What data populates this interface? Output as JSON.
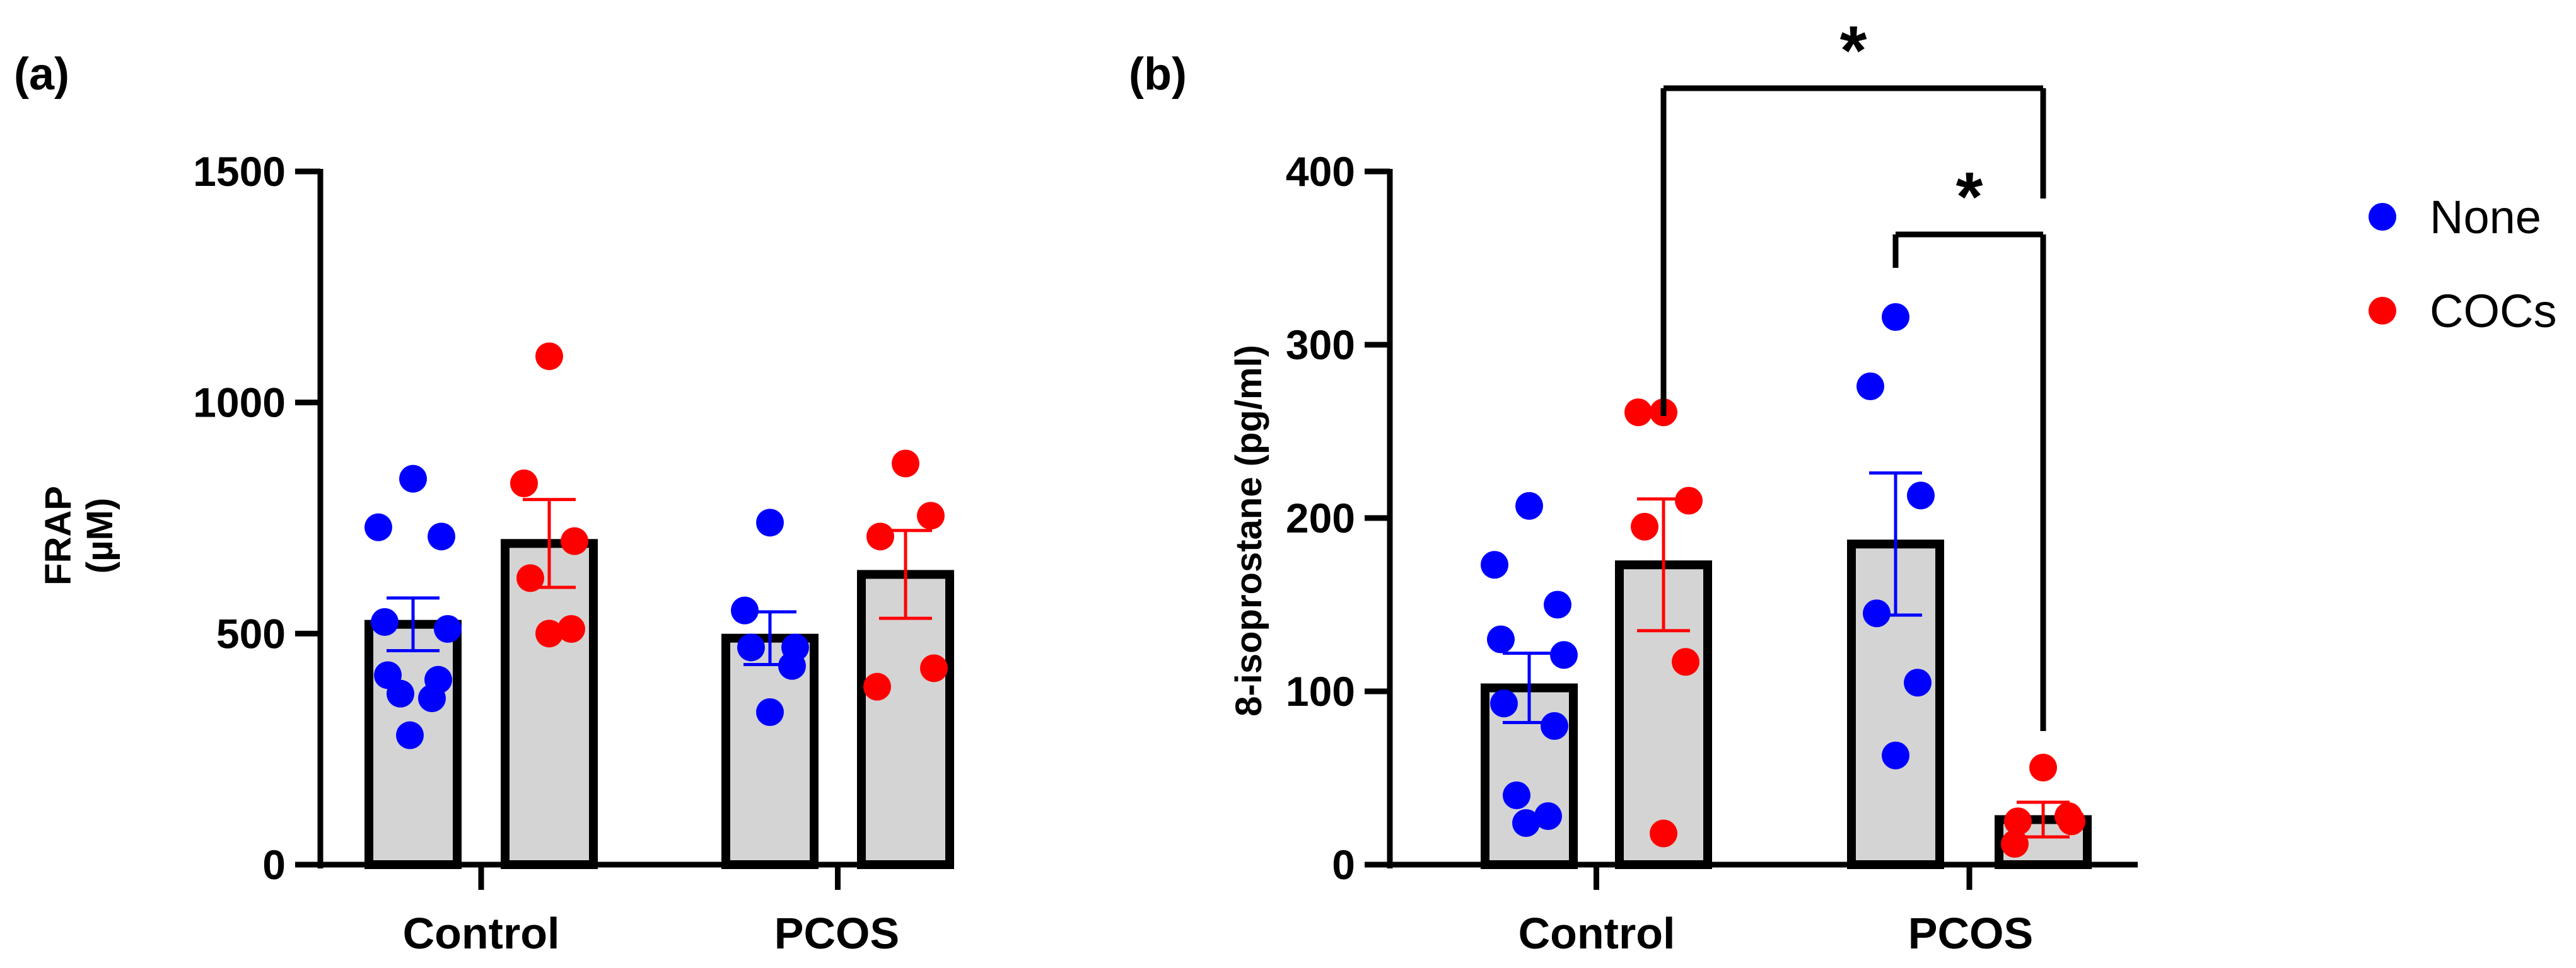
{
  "colors": {
    "none": "#0000ff",
    "cocs": "#ff0000",
    "bar_fill": "#d4d4d4",
    "axis": "#000000"
  },
  "legend": [
    {
      "label": "None",
      "color": "#0000ff"
    },
    {
      "label": "COCs",
      "color": "#ff0000"
    }
  ],
  "chart_data": [
    {
      "panel": "(a)",
      "type": "bar",
      "ylabel_lines": [
        "FRAP",
        "(µM)"
      ],
      "ylim": [
        0,
        1500
      ],
      "yticks": [
        0,
        500,
        1000,
        1500
      ],
      "ytick_labels": [
        "0",
        "500",
        "1000",
        "1500"
      ],
      "categories": [
        "Control",
        "PCOS"
      ],
      "series": [
        {
          "name": "None",
          "color": "#0000ff",
          "means": [
            520,
            490
          ],
          "sem": [
            57,
            57
          ],
          "points": [
            [
              835,
              730,
              710,
              525,
              510,
              410,
              400,
              370,
              360,
              280
            ],
            [
              740,
              550,
              470,
              470,
              430,
              330
            ]
          ]
        },
        {
          "name": "COCs",
          "color": "#ff0000",
          "means": [
            695,
            628
          ],
          "sem": [
            95,
            95
          ],
          "points": [
            [
              1100,
              825,
              700,
              620,
              510,
              500
            ],
            [
              868,
              755,
              710,
              425,
              385
            ]
          ]
        }
      ],
      "significance": []
    },
    {
      "panel": "(b)",
      "type": "bar",
      "ylabel_lines": [
        "8-isoprostane (pg/ml)"
      ],
      "ylim": [
        0,
        400
      ],
      "yticks": [
        0,
        100,
        200,
        300,
        400
      ],
      "ytick_labels": [
        "0",
        "100",
        "200",
        "300",
        "400"
      ],
      "categories": [
        "Control",
        "PCOS"
      ],
      "series": [
        {
          "name": "None",
          "color": "#0000ff",
          "means": [
            102,
            185
          ],
          "sem": [
            20,
            41
          ],
          "points": [
            [
              207,
              173,
              150,
              130,
              121,
              93,
              80,
              40,
              28,
              24
            ],
            [
              316,
              276,
              213,
              145,
              105,
              63
            ]
          ]
        },
        {
          "name": "COCs",
          "color": "#ff0000",
          "means": [
            173,
            26
          ],
          "sem": [
            38,
            10
          ],
          "points": [
            [
              261,
              261,
              210,
              195,
              117,
              18
            ],
            [
              56,
              28,
              25,
              25,
              12
            ]
          ]
        }
      ],
      "significance": [
        {
          "label": "*",
          "from": "Control-COCs",
          "to": "PCOS-COCs"
        },
        {
          "label": "*",
          "from": "PCOS-None",
          "to": "PCOS-COCs"
        }
      ]
    }
  ]
}
